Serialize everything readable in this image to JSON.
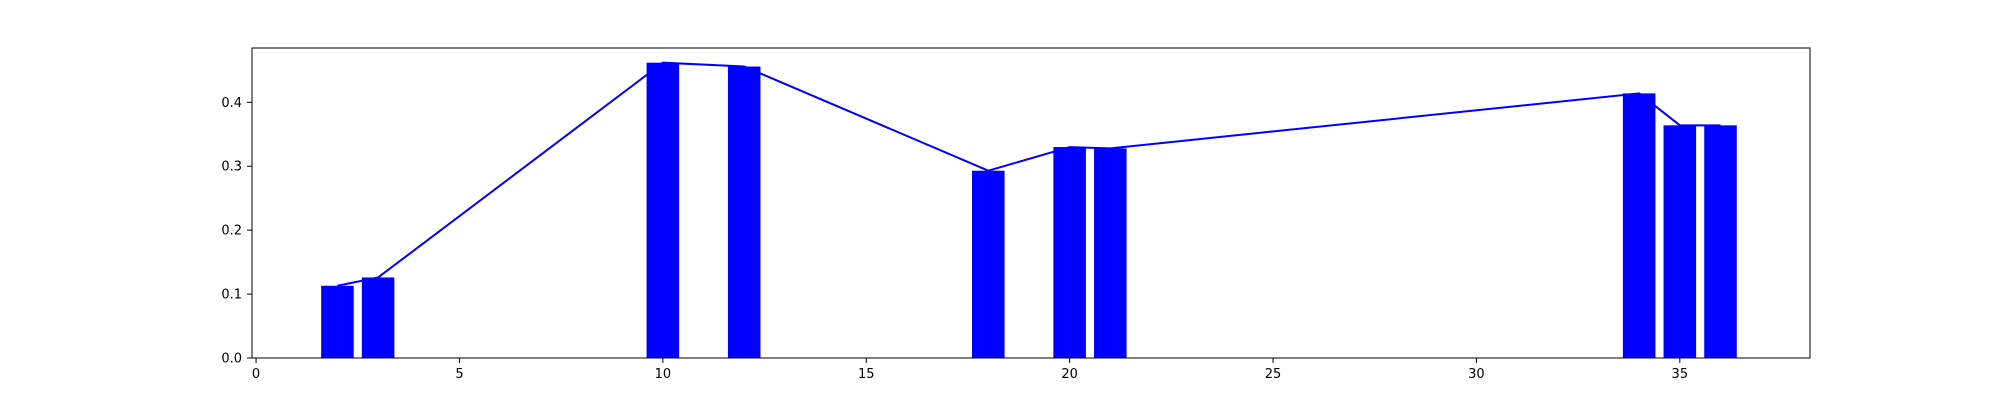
{
  "chart_data": {
    "type": "bar",
    "title": "",
    "xlabel": "",
    "ylabel": "",
    "xlim": [
      -0.1,
      38.2
    ],
    "ylim": [
      0,
      0.485
    ],
    "xticks": [
      0,
      5,
      10,
      15,
      20,
      25,
      30,
      35
    ],
    "yticks": [
      0.0,
      0.1,
      0.2,
      0.3,
      0.4
    ],
    "ytick_labels": [
      "0.0",
      "0.1",
      "0.2",
      "0.3",
      "0.4"
    ],
    "bar_width": 0.8,
    "grid": false,
    "bar_color": "#0000ff",
    "line_color": "#0000ff",
    "bars": [
      {
        "x": 2,
        "value": 0.113
      },
      {
        "x": 3,
        "value": 0.126
      },
      {
        "x": 10,
        "value": 0.462
      },
      {
        "x": 12,
        "value": 0.456
      },
      {
        "x": 18,
        "value": 0.293
      },
      {
        "x": 20,
        "value": 0.33
      },
      {
        "x": 21,
        "value": 0.328
      },
      {
        "x": 34,
        "value": 0.414
      },
      {
        "x": 35,
        "value": 0.364
      },
      {
        "x": 36,
        "value": 0.364
      }
    ]
  }
}
